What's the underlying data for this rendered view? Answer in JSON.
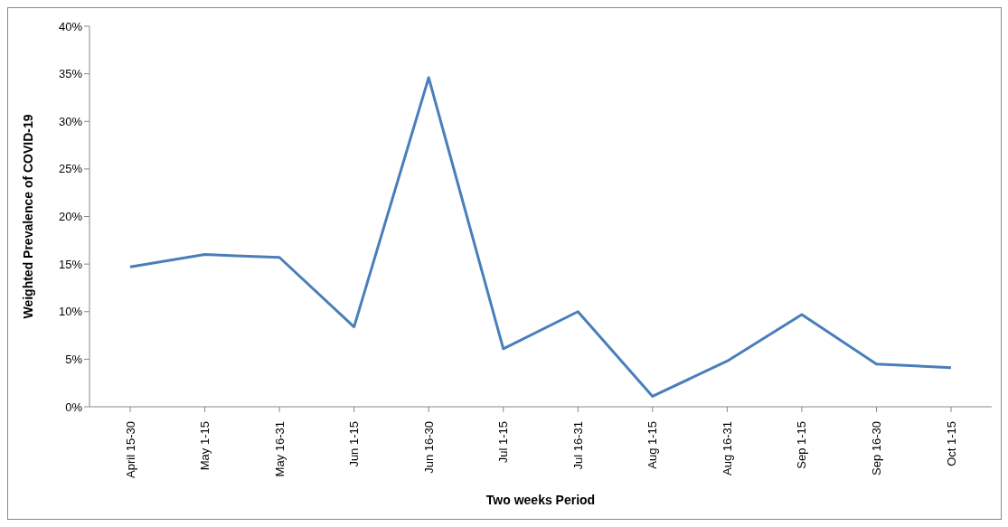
{
  "chart_data": {
    "type": "line",
    "xlabel": "Two weeks Period",
    "ylabel": "Weighted Prevalence of COVID-19",
    "categories": [
      "April 15-30",
      "May 1-15",
      "May 16-31",
      "Jun 1-15",
      "Jun 16-30",
      "Jul 1-15",
      "Jul 16-31",
      "Aug 1-15",
      "Aug 16-31",
      "Sep 1-15",
      "Sep 16-30",
      "Oct 1-15"
    ],
    "series": [
      {
        "color": "#4a7ebb",
        "values": [
          14.7,
          16.0,
          15.7,
          8.4,
          34.6,
          6.1,
          10.0,
          1.1,
          4.8,
          9.7,
          4.5,
          4.1
        ]
      }
    ],
    "ylim": [
      0,
      40
    ],
    "yticks": [
      {
        "value": 0,
        "label": "0%"
      },
      {
        "value": 5,
        "label": "5%"
      },
      {
        "value": 10,
        "label": "10%"
      },
      {
        "value": 15,
        "label": "15%"
      },
      {
        "value": 20,
        "label": "20%"
      },
      {
        "value": 25,
        "label": "25%"
      },
      {
        "value": 30,
        "label": "30%"
      },
      {
        "value": 35,
        "label": "35%"
      },
      {
        "value": 40,
        "label": "40%"
      }
    ],
    "grid": false,
    "legend": false,
    "marker": "none",
    "line_style": "solid"
  }
}
